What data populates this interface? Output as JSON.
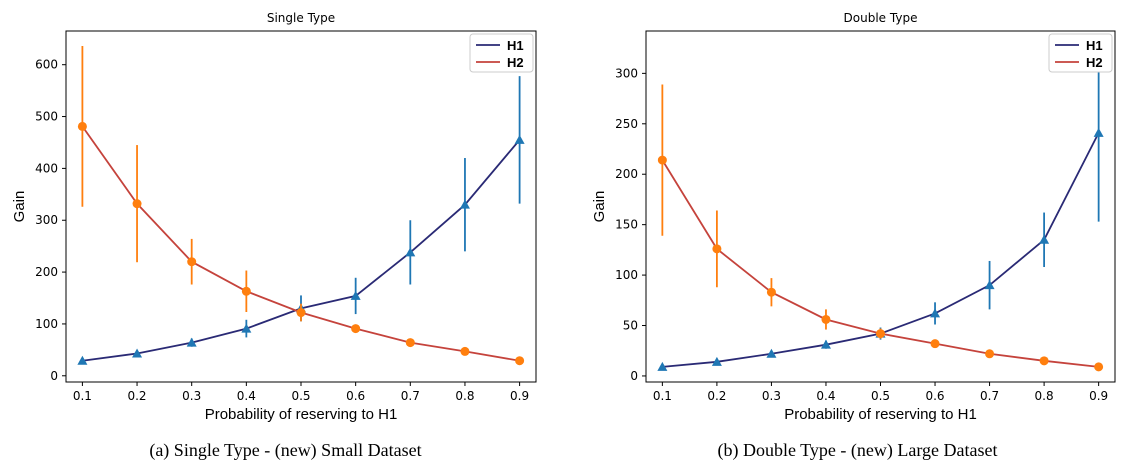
{
  "chart_data": [
    {
      "type": "line",
      "title": "Single Type",
      "xlabel": "Probability of reserving to H1",
      "ylabel": "Gain",
      "x": [
        0.1,
        0.2,
        0.3,
        0.4,
        0.5,
        0.6,
        0.7,
        0.8,
        0.9
      ],
      "xticks": [
        "0.1",
        "0.2",
        "0.3",
        "0.4",
        "0.5",
        "0.6",
        "0.7",
        "0.8",
        "0.9"
      ],
      "yticks": [
        "0",
        "100",
        "200",
        "300",
        "400",
        "500",
        "600"
      ],
      "xlim": [
        0.07,
        0.93
      ],
      "ylim": [
        -12,
        665
      ],
      "legend_position": "top-right",
      "series": [
        {
          "name": "H1",
          "line_color": "#2a2a75",
          "marker_color": "#1f77b4",
          "marker": "triangle",
          "values": [
            29,
            43,
            64,
            91,
            130,
            154,
            238,
            330,
            455
          ],
          "errors": [
            3,
            4,
            8,
            17,
            25,
            35,
            62,
            90,
            123
          ]
        },
        {
          "name": "H2",
          "line_color": "#c5433c",
          "marker_color": "#ff7f0e",
          "marker": "circle",
          "values": [
            481,
            332,
            220,
            163,
            122,
            91,
            64,
            47,
            29
          ],
          "errors": [
            155,
            113,
            44,
            40,
            17,
            5,
            4,
            3,
            2
          ]
        }
      ]
    },
    {
      "type": "line",
      "title": "Double Type",
      "xlabel": "Probability of reserving to H1",
      "ylabel": "Gain",
      "x": [
        0.1,
        0.2,
        0.3,
        0.4,
        0.5,
        0.6,
        0.7,
        0.8,
        0.9
      ],
      "xticks": [
        "0.1",
        "0.2",
        "0.3",
        "0.4",
        "0.5",
        "0.6",
        "0.7",
        "0.8",
        "0.9"
      ],
      "yticks": [
        "0",
        "50",
        "100",
        "150",
        "200",
        "250",
        "300"
      ],
      "xlim": [
        0.07,
        0.93
      ],
      "ylim": [
        -6,
        342
      ],
      "legend_position": "top-right",
      "series": [
        {
          "name": "H1",
          "line_color": "#2a2a75",
          "marker_color": "#1f77b4",
          "marker": "triangle",
          "values": [
            9,
            14,
            22,
            31,
            42,
            62,
            90,
            135,
            241
          ],
          "errors": [
            1,
            2,
            3,
            4,
            6,
            11,
            24,
            27,
            88
          ]
        },
        {
          "name": "H2",
          "line_color": "#c5433c",
          "marker_color": "#ff7f0e",
          "marker": "circle",
          "values": [
            214,
            126,
            83,
            56,
            42,
            32,
            22,
            15,
            9
          ],
          "errors": [
            75,
            38,
            14,
            10,
            5,
            3,
            2,
            2,
            1
          ]
        }
      ]
    }
  ],
  "captions": [
    "(a) Single Type - (new) Small Dataset",
    "(b) Double Type - (new) Large Dataset"
  ]
}
